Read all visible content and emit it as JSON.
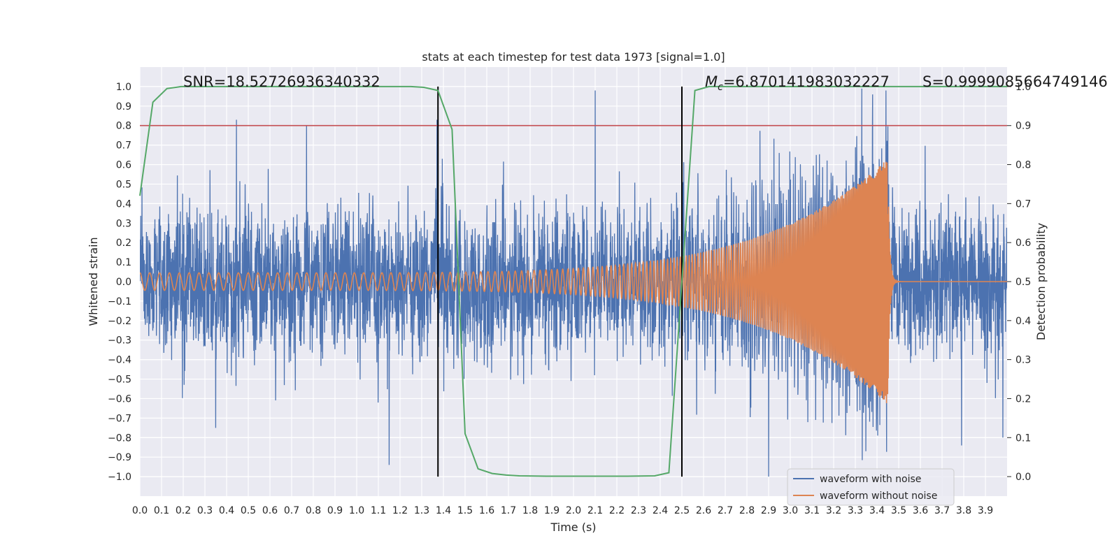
{
  "chart_data": {
    "type": "line",
    "title": "stats at each timestep for test data 1973 [signal=1.0]",
    "xlabel": "Time (s)",
    "ylabel": "Whitened strain",
    "y2label": "Detection probability",
    "xlim": [
      0.0,
      4.0
    ],
    "ylim": [
      -1.1,
      1.1
    ],
    "y2lim": [
      -0.05,
      1.05
    ],
    "x_ticks": [
      0.0,
      0.1,
      0.2,
      0.3,
      0.4,
      0.5,
      0.6,
      0.7,
      0.8,
      0.9,
      1.0,
      1.1,
      1.2,
      1.3,
      1.4,
      1.5,
      1.6,
      1.7,
      1.8,
      1.9,
      2.0,
      2.1,
      2.2,
      2.3,
      2.4,
      2.5,
      2.6,
      2.7,
      2.8,
      2.9,
      3.0,
      3.1,
      3.2,
      3.3,
      3.4,
      3.5,
      3.6,
      3.7,
      3.8,
      3.9
    ],
    "y_ticks": [
      1.0,
      0.9,
      0.8,
      0.7,
      0.6,
      0.5,
      0.4,
      0.3,
      0.2,
      0.1,
      0.0,
      -0.1,
      -0.2,
      -0.3,
      -0.4,
      -0.5,
      -0.6,
      -0.7,
      -0.8,
      -0.9,
      -1.0
    ],
    "y2_ticks": [
      1.0,
      0.9,
      0.8,
      0.7,
      0.6,
      0.5,
      0.4,
      0.3,
      0.2,
      0.1,
      0.0
    ],
    "grid": true,
    "annotations": {
      "snr": "SNR=18.52726936340332",
      "mc_label": "M",
      "mc_sub": "c",
      "mc_value": "=6.870141983032227",
      "s": "S=0.9999085664749146"
    },
    "threshold": {
      "axis": "y2",
      "value": 0.9,
      "color": "#c44e52"
    },
    "vlines": [
      1.375,
      2.5
    ],
    "legend": {
      "position": "lower-right",
      "entries": [
        "waveform with noise",
        "waveform without noise"
      ]
    },
    "series": [
      {
        "name": "waveform with noise",
        "axis": "y",
        "color": "#4c72b0",
        "generated": true,
        "samples": 4096,
        "approx_envelope": 0.3,
        "peaks": [
          {
            "x": 0.445,
            "y": 0.83
          },
          {
            "x": 1.37,
            "y": 0.83
          },
          {
            "x": 2.1,
            "y": 0.98
          },
          {
            "x": 3.33,
            "y": 0.99
          },
          {
            "x": 3.38,
            "y": 0.96
          },
          {
            "x": 2.9,
            "y": -1.0
          },
          {
            "x": 1.15,
            "y": -0.94
          },
          {
            "x": 0.35,
            "y": -0.75
          },
          {
            "x": 3.79,
            "y": -0.84
          },
          {
            "x": 3.98,
            "y": -0.8
          }
        ]
      },
      {
        "name": "waveform without noise",
        "axis": "y",
        "color": "#dd8452",
        "generated": true,
        "chirp": {
          "f0": 22,
          "f1": 200,
          "amp_start": 0.045,
          "amp_end": 0.63,
          "merger_x": 3.45
        }
      },
      {
        "name": "detection probability",
        "axis": "y2",
        "color": "#55a868",
        "x": [
          0.0,
          0.06,
          0.125,
          0.19,
          0.25,
          0.5,
          0.75,
          1.0,
          1.25,
          1.31,
          1.375,
          1.44,
          1.5,
          1.56,
          1.625,
          1.69,
          1.75,
          1.875,
          2.0,
          2.25,
          2.375,
          2.44,
          2.5,
          2.56,
          2.625,
          2.75,
          3.0,
          3.5,
          4.0
        ],
        "y": [
          0.72,
          0.96,
          0.995,
          1.0,
          1.0,
          1.0,
          1.0,
          1.0,
          1.0,
          0.998,
          0.99,
          0.89,
          0.11,
          0.02,
          0.008,
          0.004,
          0.002,
          0.001,
          0.001,
          0.001,
          0.002,
          0.01,
          0.5,
          0.99,
          1.0,
          1.0,
          1.0,
          1.0,
          1.0
        ]
      }
    ]
  }
}
